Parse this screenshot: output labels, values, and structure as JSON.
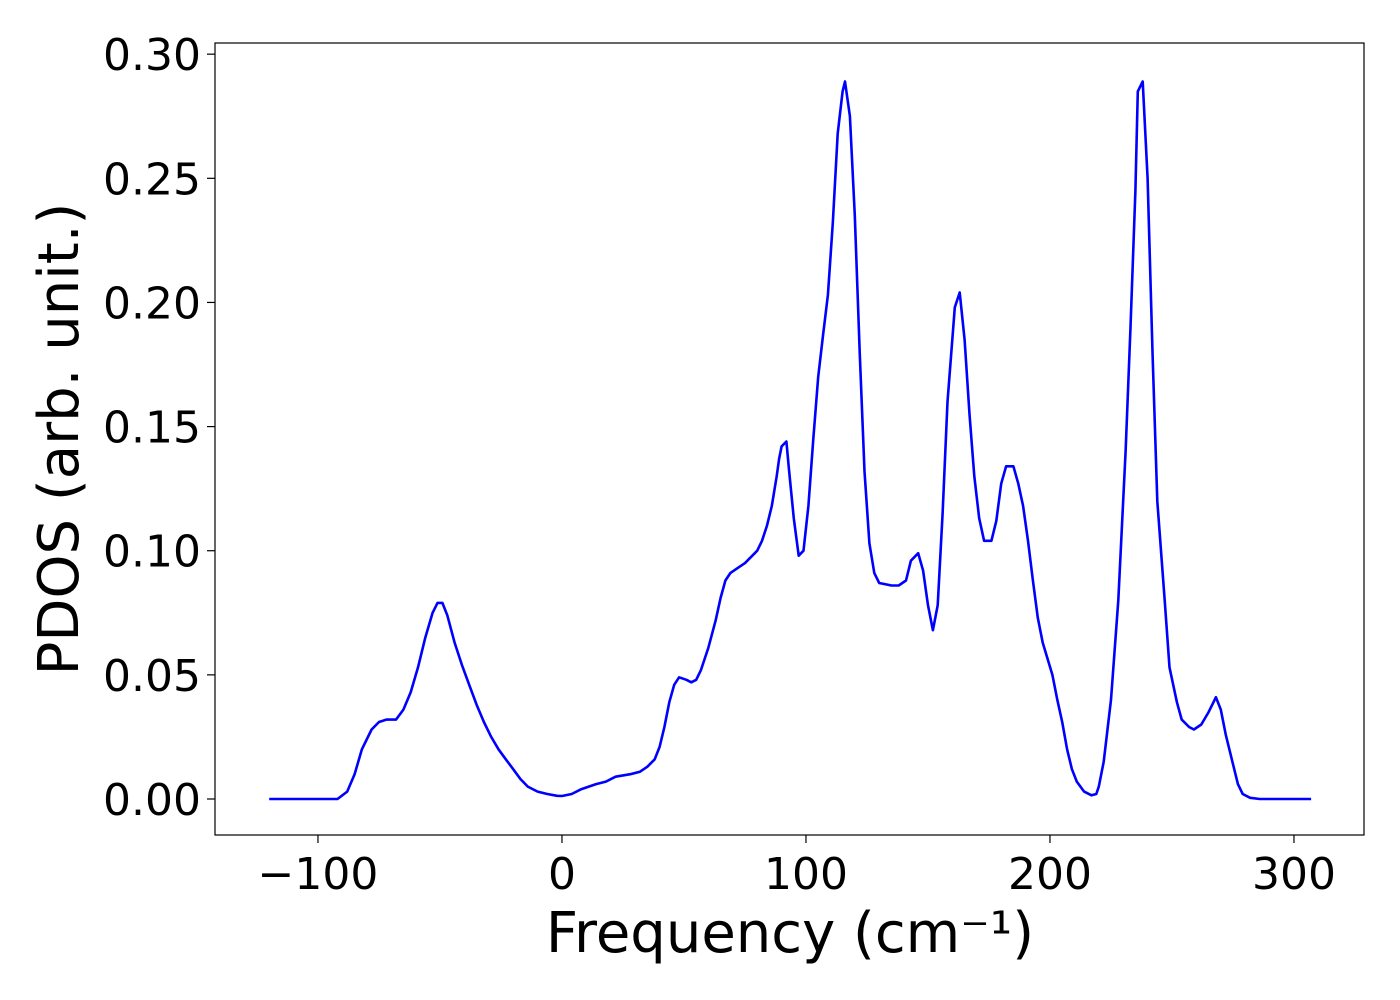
{
  "chart_data": {
    "type": "line",
    "x_label": "Frequency (cm⁻¹)",
    "y_label": "PDOS (arb. unit.)",
    "x": [
      -120,
      -100,
      -92,
      -88,
      -85,
      -82,
      -78,
      -75,
      -72,
      -68,
      -65,
      -62,
      -59,
      -56,
      -53,
      -51,
      -49,
      -47,
      -44,
      -41,
      -38,
      -35,
      -32,
      -29,
      -26,
      -23,
      -20,
      -17,
      -14,
      -10,
      -6,
      -2,
      0,
      4,
      8,
      14,
      18,
      22,
      28,
      32,
      35,
      38,
      40,
      42,
      44,
      46,
      48,
      51,
      53,
      55,
      57,
      60,
      63,
      65,
      67,
      69,
      72,
      75,
      78,
      80,
      82,
      84,
      86,
      88,
      89,
      90,
      92,
      93,
      95,
      97,
      99,
      101,
      103,
      105,
      107,
      109,
      111,
      113,
      115,
      116,
      118,
      120,
      122,
      124,
      126,
      128,
      130,
      135,
      138,
      141,
      143,
      146,
      148,
      150,
      152,
      154,
      156,
      158,
      161,
      163,
      165,
      167,
      169,
      171,
      173,
      176,
      178,
      180,
      182,
      185,
      187,
      189,
      191,
      193,
      195,
      197,
      201,
      203,
      205,
      207,
      209,
      211,
      214,
      217,
      219,
      220,
      222,
      225,
      228,
      231,
      233,
      235,
      236,
      238,
      240,
      242,
      244,
      247,
      249,
      252,
      254,
      257,
      259,
      262,
      265,
      267,
      268,
      270,
      272,
      275,
      277,
      279,
      282,
      286,
      307
    ],
    "series": [
      {
        "color": "#0000ff",
        "values": [
          0,
          0,
          0,
          0.003,
          0.01,
          0.02,
          0.028,
          0.031,
          0.032,
          0.032,
          0.036,
          0.043,
          0.053,
          0.065,
          0.075,
          0.079,
          0.079,
          0.074,
          0.063,
          0.054,
          0.046,
          0.038,
          0.031,
          0.025,
          0.02,
          0.016,
          0.012,
          0.008,
          0.005,
          0.003,
          0.002,
          0.0013,
          0.0012,
          0.002,
          0.004,
          0.006,
          0.007,
          0.009,
          0.01,
          0.011,
          0.013,
          0.016,
          0.021,
          0.029,
          0.039,
          0.046,
          0.049,
          0.048,
          0.047,
          0.048,
          0.052,
          0.061,
          0.072,
          0.081,
          0.088,
          0.091,
          0.093,
          0.095,
          0.098,
          0.1,
          0.104,
          0.11,
          0.118,
          0.13,
          0.137,
          0.142,
          0.144,
          0.133,
          0.113,
          0.098,
          0.1,
          0.118,
          0.145,
          0.17,
          0.187,
          0.203,
          0.232,
          0.268,
          0.285,
          0.289,
          0.275,
          0.235,
          0.18,
          0.132,
          0.103,
          0.091,
          0.087,
          0.086,
          0.086,
          0.088,
          0.096,
          0.099,
          0.092,
          0.078,
          0.068,
          0.078,
          0.115,
          0.16,
          0.198,
          0.204,
          0.185,
          0.155,
          0.13,
          0.113,
          0.104,
          0.104,
          0.112,
          0.127,
          0.134,
          0.134,
          0.127,
          0.118,
          0.104,
          0.088,
          0.073,
          0.063,
          0.05,
          0.04,
          0.031,
          0.02,
          0.012,
          0.007,
          0.003,
          0.0015,
          0.002,
          0.005,
          0.015,
          0.04,
          0.08,
          0.14,
          0.19,
          0.245,
          0.285,
          0.289,
          0.25,
          0.18,
          0.12,
          0.08,
          0.053,
          0.039,
          0.032,
          0.029,
          0.028,
          0.03,
          0.035,
          0.039,
          0.041,
          0.036,
          0.026,
          0.014,
          0.006,
          0.002,
          0.0005,
          0,
          0
        ]
      }
    ],
    "xlim": [
      -142.2,
      328.7
    ],
    "ylim": [
      -0.0145,
      0.3045
    ],
    "xticks": [
      {
        "value": -100,
        "label": "−100"
      },
      0,
      100,
      200,
      300
    ],
    "yticks": [
      {
        "value": 0,
        "label": "0.00"
      },
      {
        "value": 0.05,
        "label": "0.05"
      },
      {
        "value": 0.1,
        "label": "0.10"
      },
      {
        "value": 0.15,
        "label": "0.15"
      },
      {
        "value": 0.2,
        "label": "0.20"
      },
      {
        "value": 0.25,
        "label": "0.25"
      },
      {
        "value": 0.3,
        "label": "0.30"
      }
    ]
  }
}
